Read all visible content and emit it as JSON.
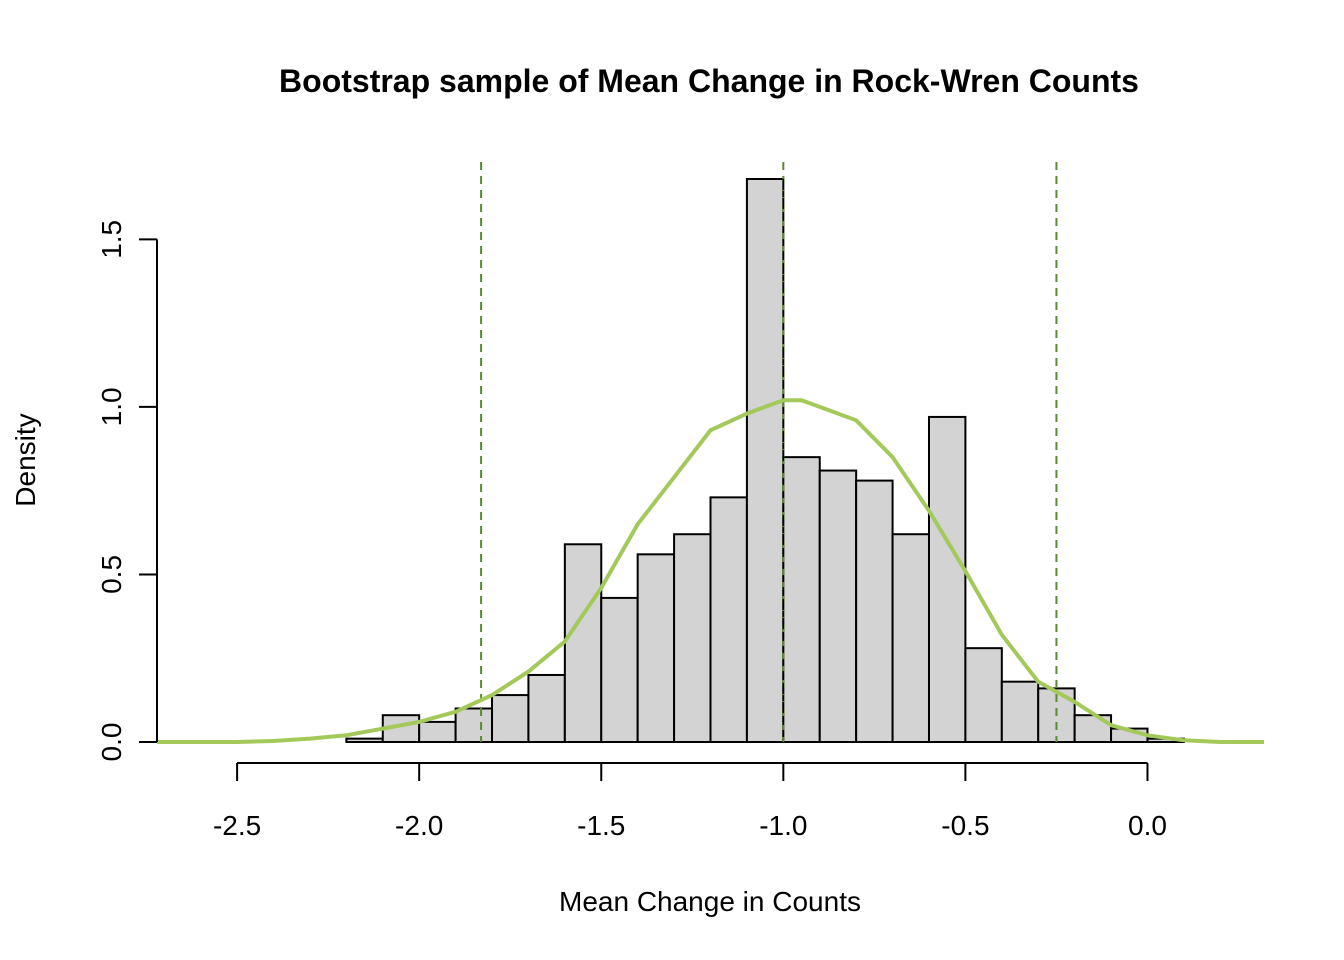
{
  "chart_data": {
    "type": "histogram",
    "title": "Bootstrap sample of Mean Change in Rock-Wren Counts",
    "xlabel": "Mean Change in Counts",
    "ylabel": "Density",
    "xlim": [
      -2.72,
      0.32
    ],
    "ylim": [
      0,
      1.68
    ],
    "x_ticks": [
      -2.5,
      -2.0,
      -1.5,
      -1.0,
      -0.5,
      0.0
    ],
    "x_tick_labels": [
      "-2.5",
      "-2.0",
      "-1.5",
      "-1.0",
      "-0.5",
      "0.0"
    ],
    "y_ticks": [
      0.0,
      0.5,
      1.0,
      1.5
    ],
    "y_tick_labels": [
      "0.0",
      "0.5",
      "1.0",
      "1.5"
    ],
    "bin_width": 0.1,
    "bins": [
      {
        "start": -2.3,
        "end": -2.2,
        "density": 0.0
      },
      {
        "start": -2.2,
        "end": -2.1,
        "density": 0.01
      },
      {
        "start": -2.1,
        "end": -2.0,
        "density": 0.08
      },
      {
        "start": -2.0,
        "end": -1.9,
        "density": 0.06
      },
      {
        "start": -1.9,
        "end": -1.8,
        "density": 0.1
      },
      {
        "start": -1.8,
        "end": -1.7,
        "density": 0.14
      },
      {
        "start": -1.7,
        "end": -1.6,
        "density": 0.2
      },
      {
        "start": -1.6,
        "end": -1.5,
        "density": 0.59
      },
      {
        "start": -1.5,
        "end": -1.4,
        "density": 0.43
      },
      {
        "start": -1.4,
        "end": -1.3,
        "density": 0.56
      },
      {
        "start": -1.3,
        "end": -1.2,
        "density": 0.62
      },
      {
        "start": -1.2,
        "end": -1.1,
        "density": 0.73
      },
      {
        "start": -1.1,
        "end": -1.0,
        "density": 1.68
      },
      {
        "start": -1.0,
        "end": -0.9,
        "density": 0.85
      },
      {
        "start": -0.9,
        "end": -0.8,
        "density": 0.81
      },
      {
        "start": -0.8,
        "end": -0.7,
        "density": 0.78
      },
      {
        "start": -0.7,
        "end": -0.6,
        "density": 0.62
      },
      {
        "start": -0.6,
        "end": -0.5,
        "density": 0.97
      },
      {
        "start": -0.5,
        "end": -0.4,
        "density": 0.28
      },
      {
        "start": -0.4,
        "end": -0.3,
        "density": 0.18
      },
      {
        "start": -0.3,
        "end": -0.2,
        "density": 0.16
      },
      {
        "start": -0.2,
        "end": -0.1,
        "density": 0.08
      },
      {
        "start": -0.1,
        "end": 0.0,
        "density": 0.04
      },
      {
        "start": 0.0,
        "end": 0.1,
        "density": 0.01
      }
    ],
    "density_curve": {
      "color": "#a3c95a",
      "x": [
        -2.72,
        -2.6,
        -2.5,
        -2.4,
        -2.3,
        -2.2,
        -2.1,
        -2.0,
        -1.9,
        -1.8,
        -1.7,
        -1.6,
        -1.5,
        -1.4,
        -1.3,
        -1.2,
        -1.1,
        -1.05,
        -1.0,
        -0.95,
        -0.9,
        -0.8,
        -0.7,
        -0.6,
        -0.5,
        -0.4,
        -0.3,
        -0.2,
        -0.1,
        0.0,
        0.1,
        0.2,
        0.32
      ],
      "y": [
        0.0,
        0.0,
        0.0,
        0.003,
        0.01,
        0.02,
        0.04,
        0.06,
        0.09,
        0.14,
        0.21,
        0.3,
        0.46,
        0.65,
        0.79,
        0.93,
        0.98,
        1.0,
        1.02,
        1.02,
        1.0,
        0.96,
        0.85,
        0.69,
        0.51,
        0.32,
        0.18,
        0.12,
        0.05,
        0.02,
        0.005,
        0.0,
        0.0
      ]
    },
    "vertical_lines": [
      {
        "x": -1.83,
        "color": "#5b8a2e",
        "style": "dashed"
      },
      {
        "x": -1.0,
        "color": "#5b8a2e",
        "style": "dashed"
      },
      {
        "x": -0.25,
        "color": "#5b8a2e",
        "style": "dashed"
      }
    ],
    "grid": false,
    "bar_color": "#d3d3d3",
    "bar_edge_color": "#000000"
  }
}
